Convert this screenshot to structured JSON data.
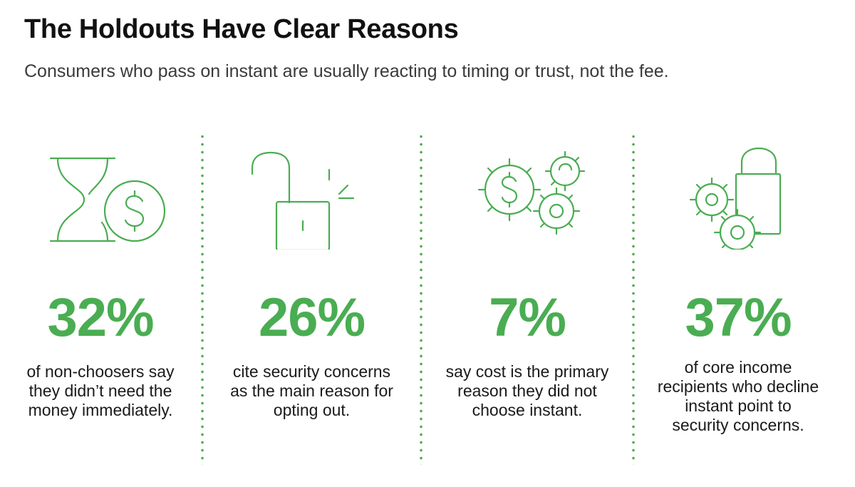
{
  "title": "The Holdouts Have Clear Reasons",
  "subtitle": "Consumers who pass on instant are usually reacting to timing or trust, not the fee.",
  "accent_color": "#4aad52",
  "stats": [
    {
      "icon": "hourglass-dollar-icon",
      "value": "32%",
      "lines": [
        "of non-choosers say",
        "they didn’t need the",
        "money immediately."
      ]
    },
    {
      "icon": "open-padlock-icon",
      "value": "26%",
      "lines": [
        "cite security concerns",
        "as the main reason for",
        "opting out."
      ]
    },
    {
      "icon": "dollar-gears-icon",
      "value": "7%",
      "lines": [
        "say cost is the primary",
        "reason they did not",
        "choose instant."
      ]
    },
    {
      "icon": "gears-padlock-icon",
      "value": "37%",
      "lines": [
        "of core income",
        "recipients who decline",
        "instant point to",
        "security concerns."
      ]
    }
  ]
}
